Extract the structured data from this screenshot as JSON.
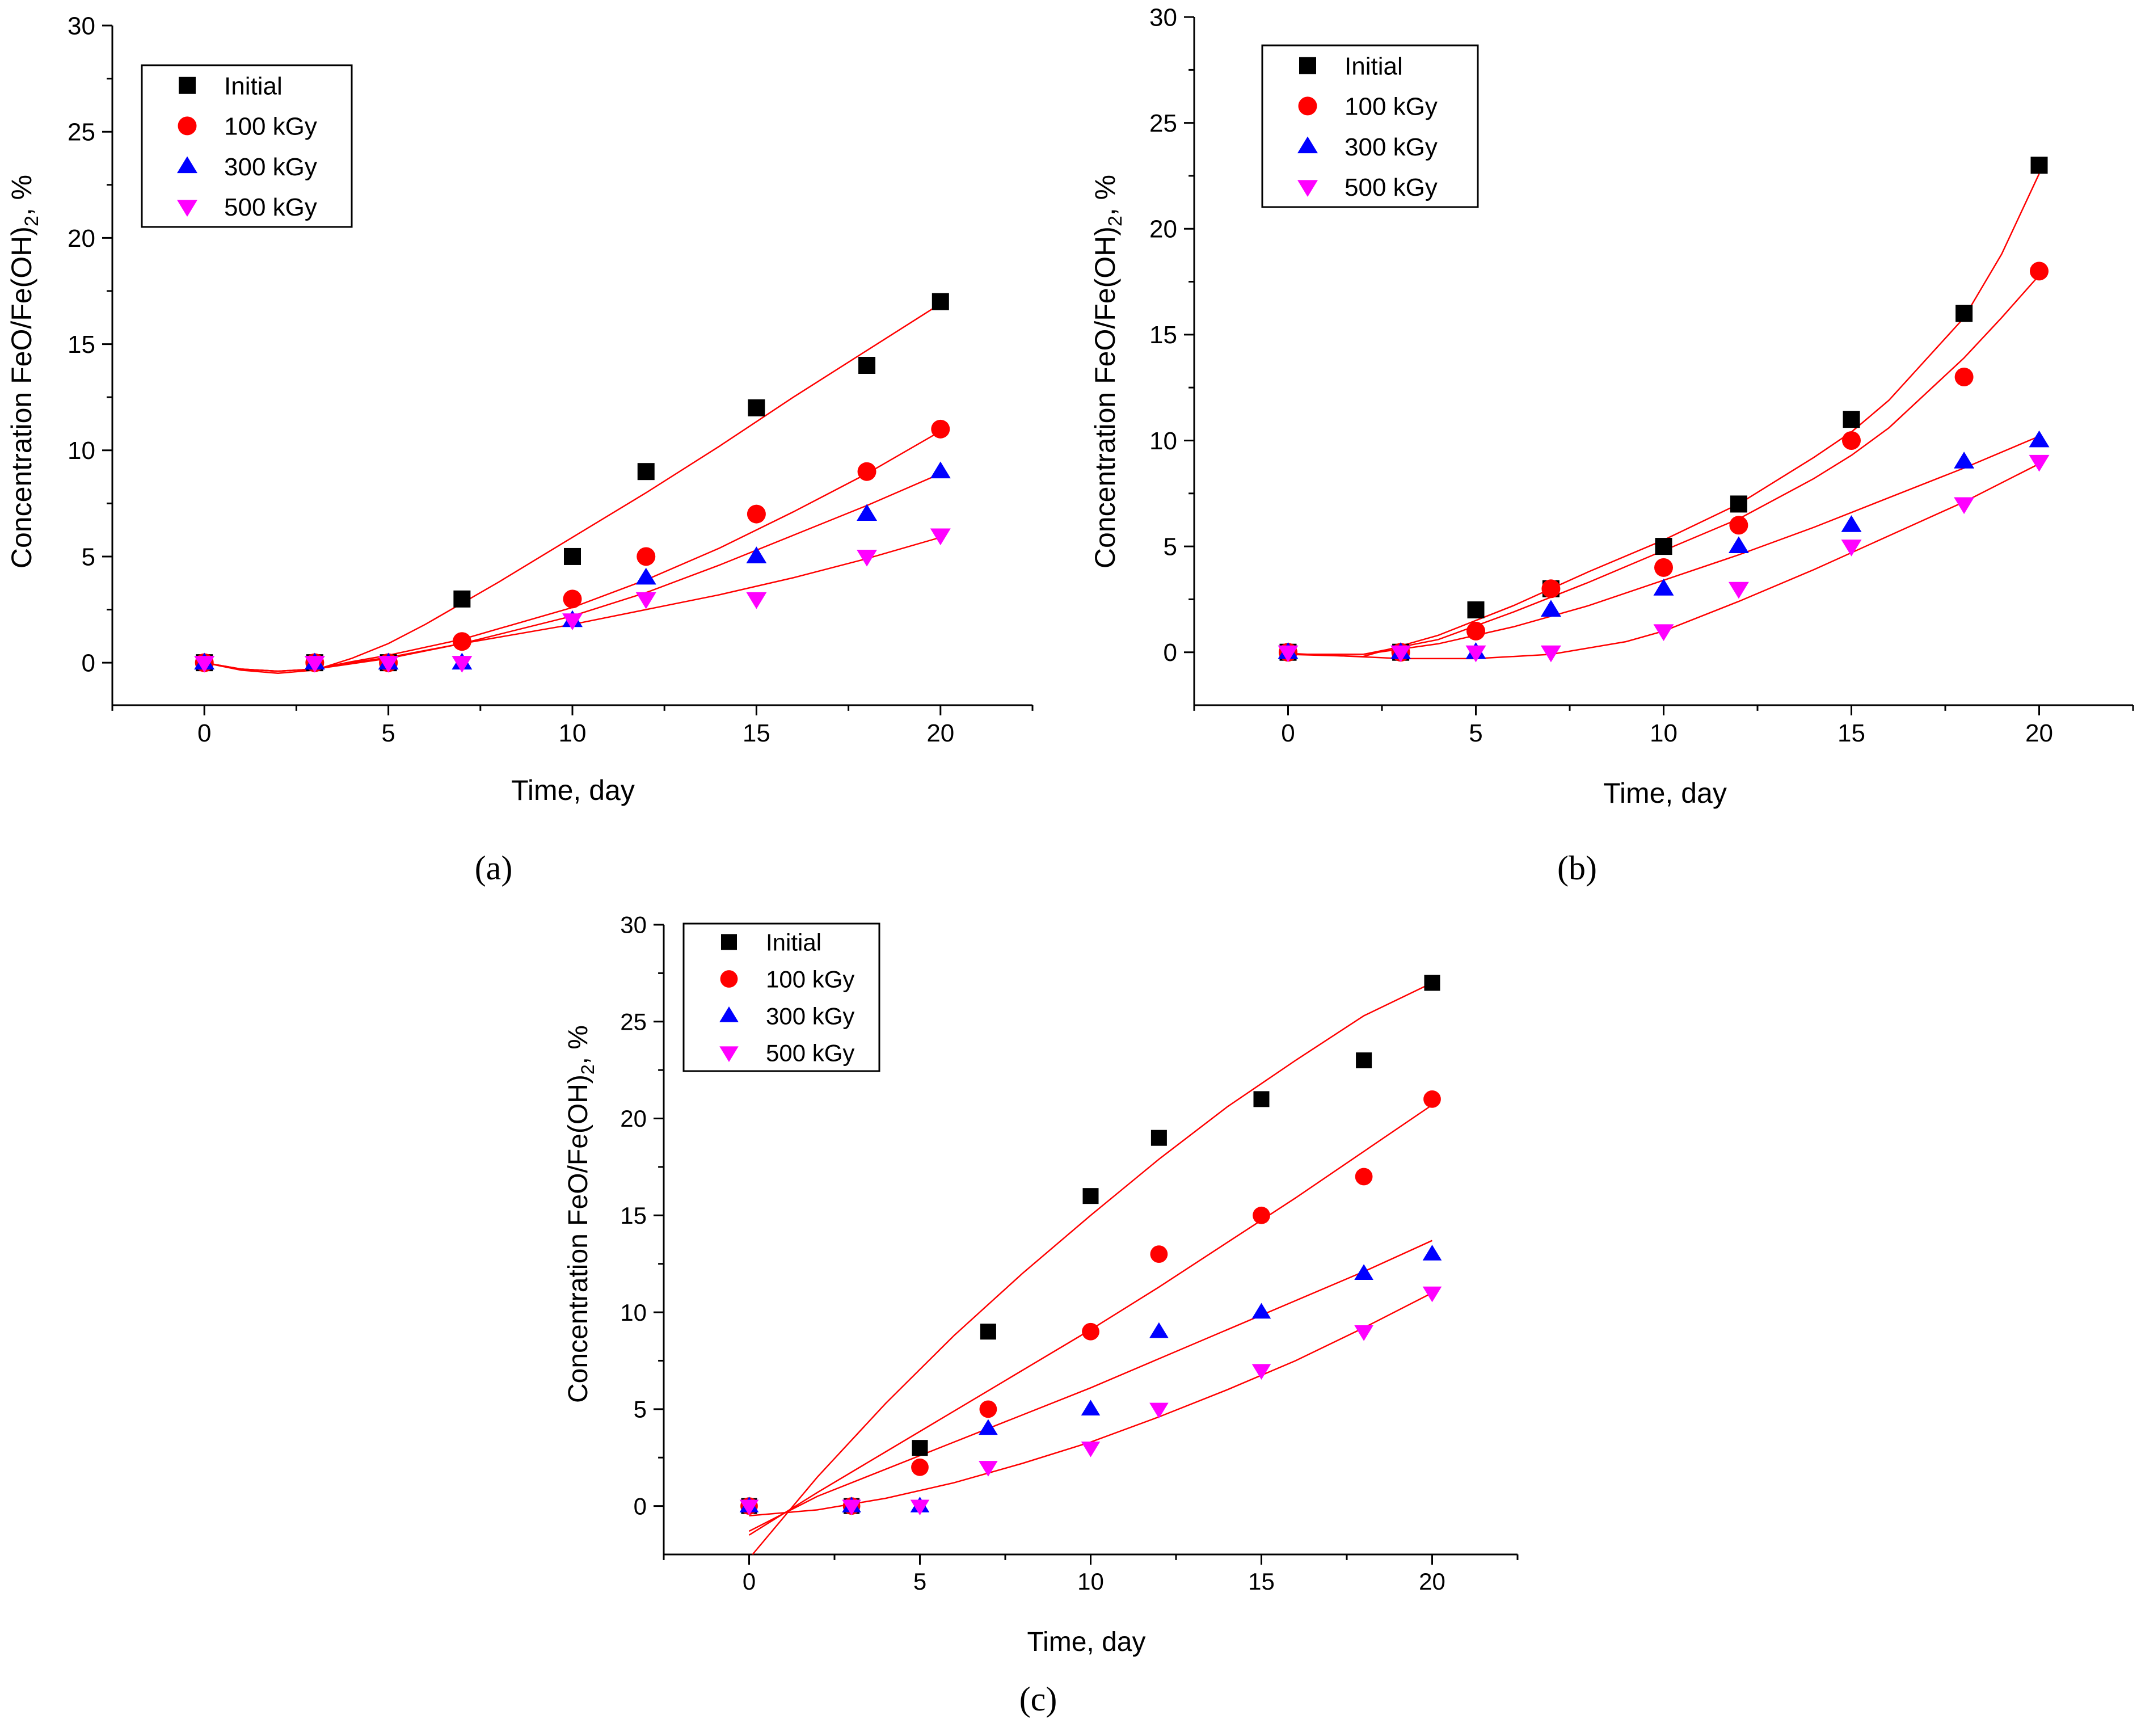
{
  "figure": {
    "panel_labels": [
      "(a)",
      "(b)",
      "(c)"
    ]
  },
  "chart_data": [
    {
      "type": "scatter",
      "panel": "(a)",
      "xlabel": "Time, day",
      "ylabel": "Concentration FeO/Fe(OH)2, %",
      "xlim": [
        -2.5,
        22.5
      ],
      "ylim": [
        -2,
        30
      ],
      "xticks": [
        0,
        5,
        10,
        15,
        20
      ],
      "yticks": [
        0,
        5,
        10,
        15,
        20,
        25,
        30
      ],
      "legend_position": "top-left",
      "x": [
        0,
        3,
        5,
        7,
        10,
        12,
        15,
        18,
        20
      ],
      "series": [
        {
          "name": "Initial",
          "marker": "square",
          "color": "#000000",
          "values": [
            0,
            0,
            0,
            3,
            5,
            9,
            12,
            14,
            17
          ],
          "fit": [
            [
              0,
              0
            ],
            [
              1,
              -0.35
            ],
            [
              2,
              -0.5
            ],
            [
              3,
              -0.35
            ],
            [
              4,
              0.2
            ],
            [
              5,
              0.9
            ],
            [
              6,
              1.8
            ],
            [
              7,
              2.8
            ],
            [
              8,
              3.8
            ],
            [
              10,
              5.9
            ],
            [
              12,
              8.0
            ],
            [
              14,
              10.2
            ],
            [
              16,
              12.5
            ],
            [
              18,
              14.7
            ],
            [
              20,
              16.9
            ]
          ]
        },
        {
          "name": "100 kGy",
          "marker": "circle",
          "color": "#ff0000",
          "values": [
            0,
            0,
            0,
            1,
            3,
            5,
            7,
            9,
            11
          ],
          "fit": [
            [
              0,
              0
            ],
            [
              1,
              -0.3
            ],
            [
              2,
              -0.4
            ],
            [
              3,
              -0.3
            ],
            [
              4,
              0.05
            ],
            [
              5,
              0.35
            ],
            [
              7,
              1.1
            ],
            [
              10,
              2.6
            ],
            [
              12,
              3.9
            ],
            [
              14,
              5.4
            ],
            [
              16,
              7.1
            ],
            [
              18,
              8.9
            ],
            [
              20,
              10.9
            ]
          ]
        },
        {
          "name": "300 kGy",
          "marker": "triangle-up",
          "color": "#0000ff",
          "values": [
            0,
            0,
            0,
            0,
            2,
            4,
            5,
            7,
            9
          ],
          "fit": [
            [
              0,
              0
            ],
            [
              1,
              -0.3
            ],
            [
              2,
              -0.4
            ],
            [
              3,
              -0.3
            ],
            [
              4,
              -0.05
            ],
            [
              5,
              0.2
            ],
            [
              7,
              0.9
            ],
            [
              10,
              2.2
            ],
            [
              12,
              3.3
            ],
            [
              14,
              4.6
            ],
            [
              16,
              6.0
            ],
            [
              18,
              7.4
            ],
            [
              20,
              8.9
            ]
          ]
        },
        {
          "name": "500 kGy",
          "marker": "triangle-down",
          "color": "#ff00ff",
          "values": [
            0,
            0,
            0,
            0,
            2,
            3,
            3,
            5,
            6
          ],
          "fit": [
            [
              0,
              0
            ],
            [
              1,
              -0.3
            ],
            [
              2,
              -0.4
            ],
            [
              3,
              -0.3
            ],
            [
              4,
              0
            ],
            [
              5,
              0.25
            ],
            [
              7,
              0.9
            ],
            [
              10,
              1.8
            ],
            [
              12,
              2.5
            ],
            [
              14,
              3.2
            ],
            [
              16,
              4.0
            ],
            [
              18,
              4.9
            ],
            [
              20,
              5.9
            ]
          ]
        }
      ]
    },
    {
      "type": "scatter",
      "panel": "(b)",
      "xlabel": "Time, day",
      "ylabel": "Concentration FeO/Fe(OH)2, %",
      "xlim": [
        -2.5,
        22.5
      ],
      "ylim": [
        -2.5,
        30
      ],
      "xticks": [
        0,
        5,
        10,
        15,
        20
      ],
      "yticks": [
        0,
        5,
        10,
        15,
        20,
        25,
        30
      ],
      "legend_position": "top-left",
      "x": [
        0,
        3,
        5,
        7,
        10,
        12,
        15,
        18,
        20
      ],
      "series": [
        {
          "name": "Initial",
          "marker": "square",
          "color": "#000000",
          "values": [
            0,
            0,
            2,
            3,
            5,
            7,
            11,
            16,
            23
          ],
          "fit": [
            [
              0,
              -0.1
            ],
            [
              2,
              -0.2
            ],
            [
              4,
              0.8
            ],
            [
              6,
              2.2
            ],
            [
              8,
              3.8
            ],
            [
              10,
              5.3
            ],
            [
              12,
              7.0
            ],
            [
              14,
              9.2
            ],
            [
              15,
              10.4
            ],
            [
              16,
              11.9
            ],
            [
              18,
              15.8
            ],
            [
              19,
              18.8
            ],
            [
              20,
              22.6
            ]
          ]
        },
        {
          "name": "100 kGy",
          "marker": "circle",
          "color": "#ff0000",
          "values": [
            0,
            0,
            1,
            3,
            4,
            6,
            10,
            13,
            18
          ],
          "fit": [
            [
              0,
              -0.1
            ],
            [
              2,
              -0.1
            ],
            [
              4,
              0.6
            ],
            [
              6,
              1.9
            ],
            [
              8,
              3.3
            ],
            [
              10,
              4.8
            ],
            [
              12,
              6.3
            ],
            [
              14,
              8.2
            ],
            [
              15,
              9.3
            ],
            [
              16,
              10.6
            ],
            [
              18,
              13.9
            ],
            [
              19,
              15.8
            ],
            [
              20,
              17.8
            ]
          ]
        },
        {
          "name": "300 kGy",
          "marker": "triangle-up",
          "color": "#0000ff",
          "values": [
            0,
            0,
            0,
            2,
            3,
            5,
            6,
            9,
            10
          ],
          "fit": [
            [
              0,
              -0.1
            ],
            [
              2,
              -0.1
            ],
            [
              4,
              0.4
            ],
            [
              6,
              1.2
            ],
            [
              8,
              2.2
            ],
            [
              10,
              3.4
            ],
            [
              12,
              4.6
            ],
            [
              14,
              5.9
            ],
            [
              16,
              7.3
            ],
            [
              18,
              8.7
            ],
            [
              20,
              10.2
            ]
          ]
        },
        {
          "name": "500 kGy",
          "marker": "triangle-down",
          "color": "#ff00ff",
          "values": [
            0,
            0,
            0,
            0,
            1,
            3,
            5,
            7,
            9
          ],
          "fit": [
            [
              0,
              -0.05
            ],
            [
              3,
              -0.3
            ],
            [
              5,
              -0.3
            ],
            [
              7,
              -0.1
            ],
            [
              9,
              0.5
            ],
            [
              10,
              1.0
            ],
            [
              12,
              2.4
            ],
            [
              14,
              3.9
            ],
            [
              16,
              5.5
            ],
            [
              18,
              7.1
            ],
            [
              20,
              8.9
            ]
          ]
        }
      ]
    },
    {
      "type": "scatter",
      "panel": "(c)",
      "xlabel": "Time, day",
      "ylabel": "Concentration FeO/Fe(OH)2, %",
      "xlim": [
        -2.5,
        22.5
      ],
      "ylim": [
        -2.5,
        30
      ],
      "xticks": [
        0,
        5,
        10,
        15,
        20
      ],
      "yticks": [
        0,
        5,
        10,
        15,
        20,
        25,
        30
      ],
      "legend_position": "top-left",
      "x": [
        0,
        3,
        5,
        7,
        10,
        12,
        15,
        18,
        20
      ],
      "series": [
        {
          "name": "Initial",
          "marker": "square",
          "color": "#000000",
          "values": [
            0,
            0,
            3,
            9,
            16,
            19,
            21,
            23,
            27
          ],
          "fit": [
            [
              0.1,
              -2.5
            ],
            [
              2,
              1.5
            ],
            [
              4,
              5.3
            ],
            [
              6,
              8.8
            ],
            [
              8,
              12.0
            ],
            [
              10,
              15.0
            ],
            [
              12,
              17.9
            ],
            [
              14,
              20.6
            ],
            [
              16,
              23.0
            ],
            [
              18,
              25.3
            ],
            [
              20,
              27.0
            ]
          ]
        },
        {
          "name": "100 kGy",
          "marker": "circle",
          "color": "#ff0000",
          "values": [
            0,
            0,
            2,
            5,
            9,
            13,
            15,
            17,
            21
          ],
          "fit": [
            [
              0,
              -1.5
            ],
            [
              2,
              0.7
            ],
            [
              4,
              2.8
            ],
            [
              6,
              4.9
            ],
            [
              8,
              7.0
            ],
            [
              10,
              9.1
            ],
            [
              12,
              11.3
            ],
            [
              14,
              13.6
            ],
            [
              16,
              15.9
            ],
            [
              18,
              18.3
            ],
            [
              20,
              20.7
            ]
          ]
        },
        {
          "name": "300 kGy",
          "marker": "triangle-up",
          "color": "#0000ff",
          "values": [
            0,
            0,
            0,
            4,
            5,
            9,
            10,
            12,
            13
          ],
          "fit": [
            [
              0,
              -1.3
            ],
            [
              2,
              0.5
            ],
            [
              4,
              1.9
            ],
            [
              6,
              3.3
            ],
            [
              8,
              4.7
            ],
            [
              10,
              6.1
            ],
            [
              12,
              7.6
            ],
            [
              14,
              9.1
            ],
            [
              16,
              10.6
            ],
            [
              18,
              12.1
            ],
            [
              20,
              13.7
            ]
          ]
        },
        {
          "name": "500 kGy",
          "marker": "triangle-down",
          "color": "#ff00ff",
          "values": [
            0,
            0,
            0,
            2,
            3,
            5,
            7,
            9,
            11
          ],
          "fit": [
            [
              0,
              -0.5
            ],
            [
              2,
              -0.2
            ],
            [
              4,
              0.4
            ],
            [
              6,
              1.2
            ],
            [
              8,
              2.2
            ],
            [
              10,
              3.3
            ],
            [
              12,
              4.6
            ],
            [
              14,
              6.0
            ],
            [
              16,
              7.5
            ],
            [
              18,
              9.2
            ],
            [
              20,
              11.0
            ]
          ]
        }
      ]
    }
  ]
}
